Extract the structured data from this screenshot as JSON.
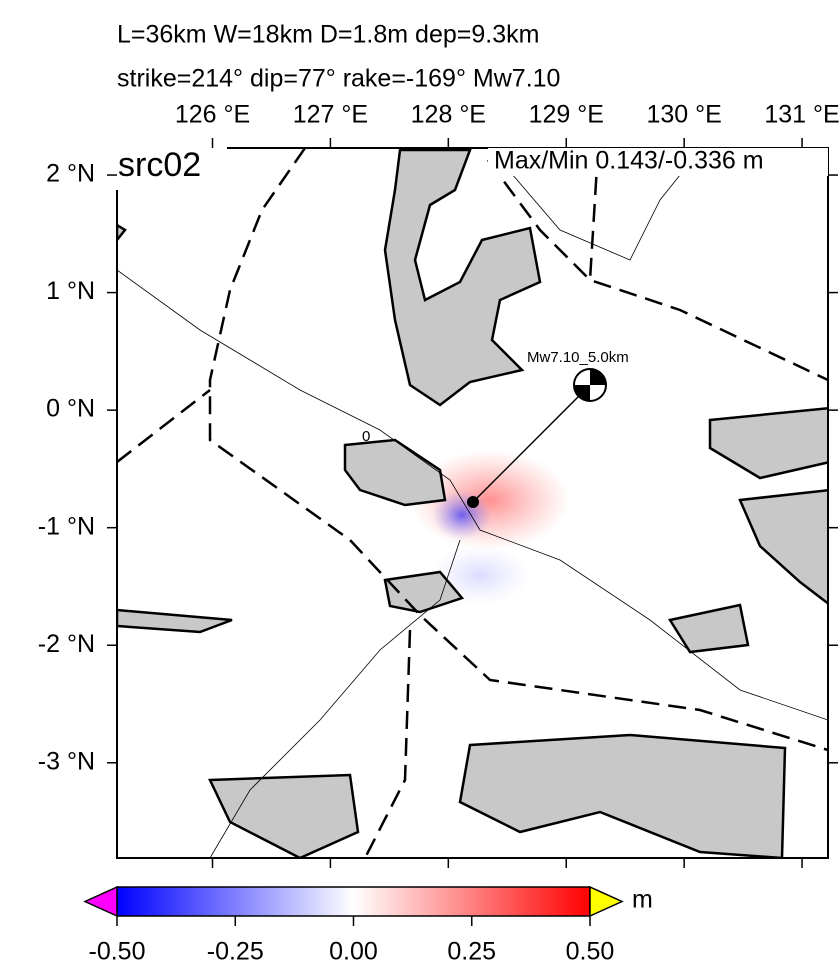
{
  "header": {
    "line1": "L=36km W=18km D=1.8m dep=9.3km",
    "line2": "strike=214° dip=77° rake=-169° Mw7.10"
  },
  "map": {
    "panel_label": "src02",
    "maxmin": "Max/Min 0.143/-0.336 m",
    "event_label": "Mw7.10_5.0km",
    "contour_label": "0",
    "xlim": [
      125.19,
      131.22
    ],
    "ylim": [
      -3.81,
      2.23
    ],
    "xticks": [
      {
        "value": 126,
        "label": "126 °E"
      },
      {
        "value": 127,
        "label": "127 °E"
      },
      {
        "value": 128,
        "label": "128 °E"
      },
      {
        "value": 129,
        "label": "129 °E"
      },
      {
        "value": 130,
        "label": "130 °E"
      },
      {
        "value": 131,
        "label": "131 °E"
      }
    ],
    "yticks": [
      {
        "value": 2,
        "label": "2 °N"
      },
      {
        "value": 1,
        "label": "1 °N"
      },
      {
        "value": 0,
        "label": "0 °N"
      },
      {
        "value": -1,
        "label": "-1 °N"
      },
      {
        "value": -2,
        "label": "-2 °N"
      },
      {
        "value": -3,
        "label": "-3 °N"
      }
    ]
  },
  "colorbar": {
    "unit": "m",
    "lim": [
      -0.5,
      0.5
    ],
    "ticks": [
      {
        "value": -0.5,
        "label": "-0.50"
      },
      {
        "value": -0.25,
        "label": "-0.25"
      },
      {
        "value": 0,
        "label": "0.00"
      },
      {
        "value": 0.25,
        "label": "0.25"
      },
      {
        "value": 0.5,
        "label": "0.50"
      }
    ]
  }
}
